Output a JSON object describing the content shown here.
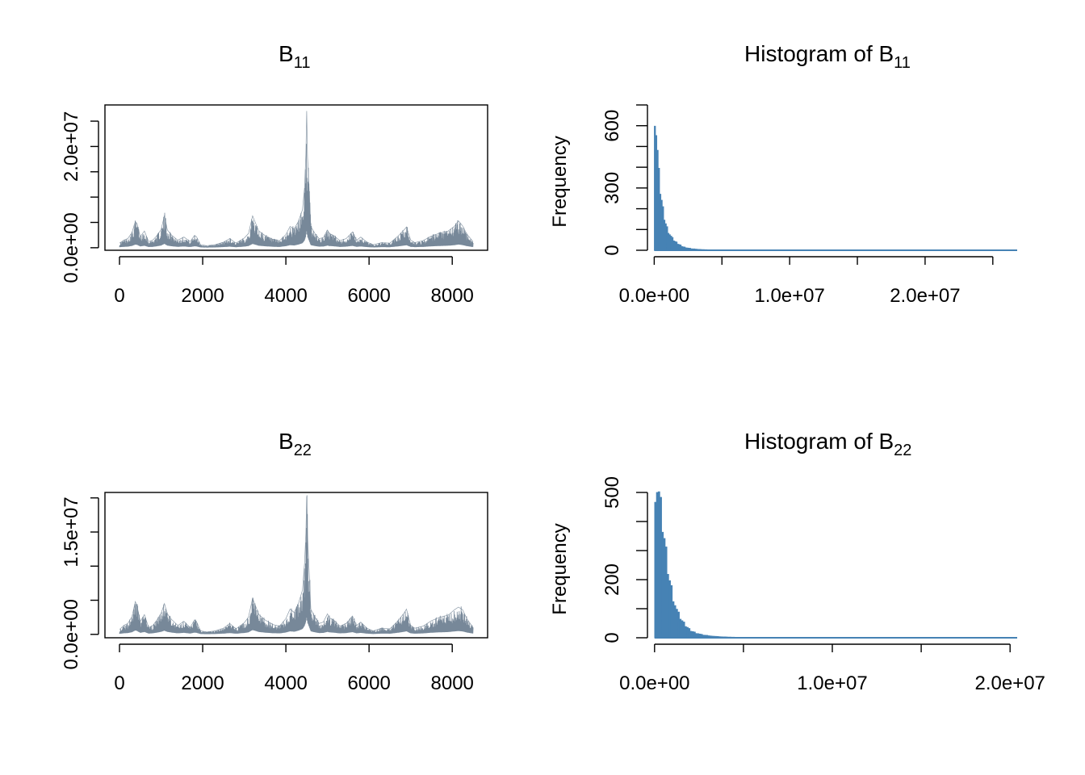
{
  "chart_data": [
    {
      "type": "line",
      "panel": "trace-b11",
      "title": "B",
      "title_subscript": "11",
      "xlabel": "",
      "ylabel": "",
      "xlim": [
        -350,
        8850
      ],
      "ylim": [
        -500000,
        28200000
      ],
      "x_ticks": [
        0,
        2000,
        4000,
        6000,
        8000
      ],
      "x_tick_labels": [
        "0",
        "2000",
        "4000",
        "6000",
        "8000"
      ],
      "y_ticks": [
        0,
        5000000,
        10000000,
        15000000,
        20000000,
        25000000
      ],
      "y_tick_labels": [
        "0.0e+00",
        "",
        "",
        "",
        "2.0e+07",
        ""
      ],
      "n_iterations": 8500,
      "color": "#778899",
      "series": [
        {
          "x": [
            0,
            100,
            200,
            300,
            380,
            420,
            500,
            600,
            700,
            800,
            900,
            1000,
            1080,
            1150,
            1250,
            1400,
            1550,
            1700,
            1800,
            1850,
            1950,
            2100,
            2300,
            2500,
            2650,
            2800,
            3000,
            3100,
            3200,
            3350,
            3500,
            3700,
            3850,
            4000,
            4100,
            4200,
            4300,
            4400,
            4450,
            4480,
            4500,
            4520,
            4560,
            4600,
            4700,
            4800,
            4900,
            5000,
            5050,
            5150,
            5300,
            5450,
            5600,
            5700,
            5800,
            5950,
            6100,
            6300,
            6500,
            6700,
            6850,
            6900,
            7000,
            7100,
            7300,
            7500,
            7700,
            7900,
            8050,
            8150,
            8250,
            8350,
            8500
          ],
          "values": [
            900000,
            1500000,
            1800000,
            3000000,
            5200000,
            4800000,
            2200000,
            3300000,
            1200000,
            1500000,
            2400000,
            3600000,
            6400000,
            3500000,
            2500000,
            1500000,
            2100000,
            1200000,
            2400000,
            2200000,
            600000,
            400000,
            600000,
            1100000,
            1800000,
            900000,
            1900000,
            2800000,
            6300000,
            3300000,
            2400000,
            1600000,
            1400000,
            2600000,
            4200000,
            3700000,
            5200000,
            7500000,
            12000000,
            18400000,
            27000000,
            18000000,
            11000000,
            4200000,
            2800000,
            1800000,
            2000000,
            3500000,
            2800000,
            2400000,
            1400000,
            1800000,
            3100000,
            1500000,
            2100000,
            1100000,
            600000,
            1000000,
            900000,
            2300000,
            3600000,
            4100000,
            1500000,
            1000000,
            1400000,
            2300000,
            2900000,
            3300000,
            4200000,
            5300000,
            4300000,
            2700000,
            1200000
          ]
        }
      ]
    },
    {
      "type": "bar",
      "panel": "hist-b11",
      "title": "Histogram of B",
      "title_subscript": "11",
      "xlabel": "",
      "ylabel": "Frequency",
      "xlim": [
        -500000,
        26800000
      ],
      "ylim": [
        0,
        700
      ],
      "x_ticks": [
        0,
        5000000,
        10000000,
        15000000,
        20000000,
        25000000
      ],
      "x_tick_labels": [
        "0.0e+00",
        "",
        "1.0e+07",
        "",
        "2.0e+07",
        ""
      ],
      "y_ticks": [
        0,
        100,
        200,
        300,
        400,
        500,
        600,
        700
      ],
      "y_tick_labels": [
        "0",
        "",
        "",
        "300",
        "",
        "",
        "600",
        ""
      ],
      "bin_width": 100000,
      "color": "#4682B4",
      "x": [
        0,
        100000,
        200000,
        300000,
        400000,
        500000,
        600000,
        700000,
        800000,
        900000,
        1000000,
        1100000,
        1200000,
        1300000,
        1400000,
        1500000,
        1600000,
        1700000,
        1800000,
        1900000,
        2000000,
        2200000,
        2400000,
        2600000,
        2800000,
        3000000,
        3400000,
        3800000,
        4200000,
        5000000,
        6000000,
        8000000,
        10000000,
        15000000,
        20000000,
        26000000
      ],
      "values": [
        680,
        580,
        470,
        360,
        290,
        240,
        195,
        160,
        130,
        108,
        92,
        78,
        66,
        56,
        48,
        42,
        37,
        32,
        28,
        24,
        20,
        15,
        12,
        9,
        7,
        6,
        4,
        3,
        2.5,
        1.5,
        1,
        0.6,
        0.4,
        0.2,
        0.2,
        0.2
      ]
    },
    {
      "type": "line",
      "panel": "trace-b22",
      "title": "B",
      "title_subscript": "22",
      "xlabel": "",
      "ylabel": "",
      "xlim": [
        -350,
        8850
      ],
      "ylim": [
        -500000,
        20800000
      ],
      "x_ticks": [
        0,
        2000,
        4000,
        6000,
        8000
      ],
      "x_tick_labels": [
        "0",
        "2000",
        "4000",
        "6000",
        "8000"
      ],
      "y_ticks": [
        0,
        5000000,
        10000000,
        15000000,
        20000000
      ],
      "y_tick_labels": [
        "0.0e+00",
        "",
        "",
        "1.5e+07",
        ""
      ],
      "n_iterations": 8500,
      "color": "#778899",
      "series": [
        {
          "x": [
            0,
            100,
            200,
            300,
            380,
            420,
            500,
            600,
            700,
            800,
            900,
            1000,
            1080,
            1150,
            1250,
            1400,
            1550,
            1700,
            1800,
            1850,
            1950,
            2100,
            2300,
            2500,
            2650,
            2800,
            3000,
            3100,
            3200,
            3350,
            3500,
            3700,
            3850,
            4000,
            4100,
            4200,
            4300,
            4400,
            4450,
            4480,
            4500,
            4520,
            4560,
            4600,
            4700,
            4800,
            4900,
            5000,
            5050,
            5150,
            5300,
            5450,
            5600,
            5700,
            5800,
            5950,
            6100,
            6300,
            6500,
            6700,
            6850,
            6900,
            7000,
            7100,
            7300,
            7500,
            7700,
            7900,
            8050,
            8150,
            8250,
            8350,
            8500
          ],
          "values": [
            700000,
            1300000,
            1600000,
            2600000,
            4800000,
            4200000,
            1900000,
            2900000,
            1000000,
            1300000,
            2100000,
            3100000,
            4500000,
            3000000,
            2200000,
            1300000,
            1900000,
            1000000,
            2100000,
            1900000,
            500000,
            350000,
            500000,
            900000,
            1600000,
            800000,
            1700000,
            2500000,
            5300000,
            2900000,
            2100000,
            1400000,
            1200000,
            2300000,
            3700000,
            3200000,
            4500000,
            6500000,
            10500000,
            14800000,
            20200000,
            14500000,
            9000000,
            3700000,
            2500000,
            1600000,
            1800000,
            3000000,
            2400000,
            2100000,
            1200000,
            1600000,
            2700000,
            1300000,
            1800000,
            900000,
            500000,
            900000,
            800000,
            2000000,
            3200000,
            3700000,
            1300000,
            900000,
            1200000,
            2000000,
            2500000,
            2800000,
            3600000,
            4000000,
            3600000,
            2300000,
            1000000
          ]
        }
      ]
    },
    {
      "type": "bar",
      "panel": "hist-b22",
      "title": "Histogram of B",
      "title_subscript": "22",
      "xlabel": "",
      "ylabel": "Frequency",
      "xlim": [
        -400000,
        20400000
      ],
      "ylim": [
        0,
        500
      ],
      "x_ticks": [
        0,
        5000000,
        10000000,
        15000000,
        20000000
      ],
      "x_tick_labels": [
        "0.0e+00",
        "",
        "1.0e+07",
        "",
        "2.0e+07"
      ],
      "y_ticks": [
        0,
        100,
        200,
        300,
        400,
        500
      ],
      "y_tick_labels": [
        "0",
        "",
        "200",
        "",
        "",
        "500"
      ],
      "bin_width": 100000,
      "color": "#4682B4",
      "x": [
        0,
        100000,
        200000,
        300000,
        400000,
        500000,
        600000,
        700000,
        800000,
        900000,
        1000000,
        1100000,
        1200000,
        1300000,
        1400000,
        1500000,
        1600000,
        1700000,
        1800000,
        1900000,
        2000000,
        2200000,
        2400000,
        2600000,
        2800000,
        3000000,
        3400000,
        3800000,
        4200000,
        5000000,
        6000000,
        8000000,
        10000000,
        14000000,
        20000000
      ],
      "values": [
        530,
        525,
        490,
        440,
        390,
        340,
        290,
        240,
        200,
        170,
        140,
        115,
        95,
        80,
        68,
        58,
        50,
        42,
        36,
        30,
        25,
        19,
        15,
        11,
        9,
        7,
        5,
        3.5,
        2.5,
        1.6,
        1,
        0.6,
        0.4,
        0.3,
        0.2
      ]
    }
  ]
}
